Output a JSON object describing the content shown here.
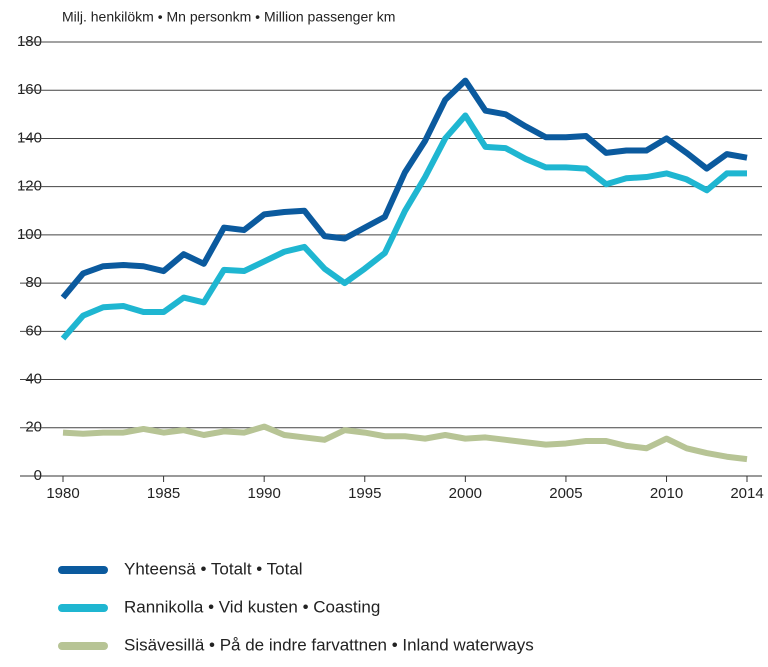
{
  "chart_data": {
    "type": "line",
    "subtitle": "Milj. henkilökm • Mn personkm • Million passenger km",
    "x": [
      1980,
      1981,
      1982,
      1983,
      1984,
      1985,
      1986,
      1987,
      1988,
      1989,
      1990,
      1991,
      1992,
      1993,
      1994,
      1995,
      1996,
      1997,
      1998,
      1999,
      2000,
      2001,
      2002,
      2003,
      2004,
      2005,
      2006,
      2007,
      2008,
      2009,
      2010,
      2011,
      2012,
      2013,
      2014
    ],
    "series": [
      {
        "name": "Yhteensä • Totalt • Total",
        "color": "#0b5a9e",
        "values": [
          74,
          84,
          87,
          87.5,
          87,
          85,
          92,
          88,
          103,
          102,
          108.5,
          109.5,
          110,
          99.5,
          98.5,
          103,
          107.5,
          126,
          139,
          156,
          164,
          151.5,
          150,
          145,
          140.5,
          140.5,
          141,
          134,
          135,
          135,
          140,
          134,
          127.5,
          133.5,
          132
        ]
      },
      {
        "name": "Rannikolla • Vid kusten • Coasting",
        "color": "#1fb6d1",
        "values": [
          57,
          66.5,
          70,
          70.5,
          68,
          68,
          74,
          72,
          85.5,
          85,
          89,
          93,
          95,
          86,
          80,
          86,
          92.5,
          110,
          124,
          140,
          149.5,
          136.5,
          136,
          131.5,
          128,
          128,
          127.5,
          121,
          123.5,
          124,
          125.5,
          123,
          118.5,
          125.5,
          125.5
        ]
      },
      {
        "name": "Sisävesillä • På de indre farvattnen • Inland waterways",
        "color": "#b7c495",
        "values": [
          18,
          17.5,
          18,
          18,
          19.5,
          18,
          19,
          17,
          18.5,
          18,
          20.5,
          17,
          16,
          15,
          19,
          18,
          16.5,
          16.5,
          15.5,
          17,
          15.5,
          16,
          15,
          14,
          13,
          13.5,
          14.5,
          14.5,
          12.5,
          11.5,
          15.5,
          11.5,
          9.5,
          8,
          7
        ]
      }
    ],
    "xlim": [
      1980,
      2014
    ],
    "xticks": [
      1980,
      1985,
      1990,
      1995,
      2000,
      2005,
      2010,
      2014
    ],
    "ylim": [
      0,
      180
    ],
    "yticks": [
      0,
      20,
      40,
      60,
      80,
      100,
      120,
      140,
      160,
      180
    ],
    "grid": true
  }
}
